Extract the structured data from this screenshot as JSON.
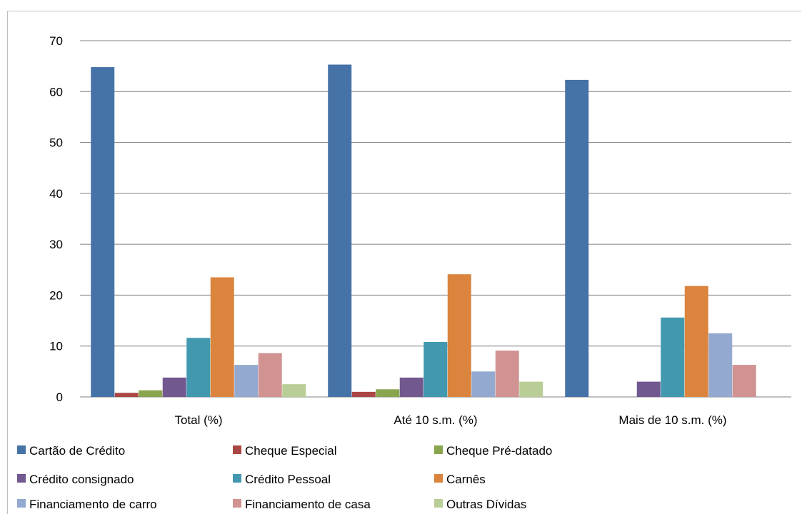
{
  "chart_data": {
    "type": "bar",
    "categories": [
      "Total (%)",
      "Até 10 s.m. (%)",
      "Mais de 10 s.m. (%)"
    ],
    "series": [
      {
        "name": "Cartão de Crédito",
        "color": "#4572a7",
        "values": [
          64.8,
          65.3,
          62.3
        ]
      },
      {
        "name": "Cheque Especial",
        "color": "#aa4643",
        "values": [
          0.8,
          1.0,
          0
        ]
      },
      {
        "name": "Cheque Pré-datado",
        "color": "#89a54e",
        "values": [
          1.3,
          1.5,
          0
        ]
      },
      {
        "name": "Crédito consignado",
        "color": "#71588f",
        "values": [
          3.8,
          3.8,
          3.0
        ]
      },
      {
        "name": "Crédito Pessoal",
        "color": "#4198af",
        "values": [
          11.6,
          10.8,
          15.6
        ]
      },
      {
        "name": "Carnês",
        "color": "#db843d",
        "values": [
          23.5,
          24.1,
          21.8
        ]
      },
      {
        "name": "Financiamento de carro",
        "color": "#93a9cf",
        "values": [
          6.3,
          5.0,
          12.5
        ]
      },
      {
        "name": "Financiamento de casa",
        "color": "#d19392",
        "values": [
          8.6,
          9.1,
          6.3
        ]
      },
      {
        "name": "Outras Dívidas",
        "color": "#b9cd96",
        "values": [
          2.5,
          3.0,
          0
        ]
      }
    ],
    "ylim": [
      0,
      70
    ],
    "yticks": [
      0,
      10,
      20,
      30,
      40,
      50,
      60,
      70
    ],
    "grid": true,
    "legend_position": "bottom"
  }
}
